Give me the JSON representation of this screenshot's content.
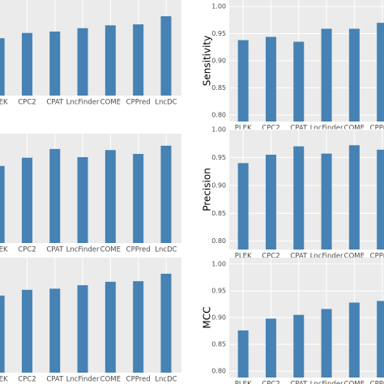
{
  "chart_data": [
    {
      "type": "bar",
      "categories": [
        "PLEK",
        "CPC2",
        "CPAT",
        "LncFinder",
        "COME",
        "CPPred",
        "LncDC"
      ],
      "values": [
        0.92,
        0.931,
        0.934,
        0.941,
        0.947,
        0.949,
        0.966
      ],
      "color": "#4682b4",
      "ylim": [
        0.8,
        1.0
      ],
      "grid": true
    },
    {
      "type": "bar",
      "ylabel": "Sensitivity",
      "categories": [
        "PLEK",
        "CPC2",
        "CPAT",
        "LncFinder",
        "COME",
        "CPPred"
      ],
      "values": [
        0.938,
        0.944,
        0.935,
        0.959,
        0.959,
        0.97
      ],
      "color": "#4682b4",
      "ylim": [
        0.788,
        1.012
      ],
      "yticks": [
        {
          "value": 0.8,
          "label": "0.80"
        },
        0.85,
        {
          "value": 0.9,
          "label": "0.90"
        },
        0.95,
        {
          "value": 1.0,
          "label": "1.00"
        }
      ],
      "grid": true
    },
    {
      "type": "bar",
      "categories": [
        "PLEK",
        "CPC2",
        "CPAT",
        "LncFinder",
        "COME",
        "CPPred",
        "LncDC"
      ],
      "values": [
        0.941,
        0.956,
        0.972,
        0.957,
        0.97,
        0.963,
        0.978
      ],
      "color": "#4682b4",
      "ylim": [
        0.8,
        1.0
      ],
      "grid": true
    },
    {
      "type": "bar",
      "ylabel": "Precision",
      "categories": [
        "PLEK",
        "CPC2",
        "CPAT",
        "LncFinder",
        "COME",
        "CPPred"
      ],
      "values": [
        0.94,
        0.955,
        0.97,
        0.957,
        0.972,
        0.964
      ],
      "color": "#4682b4",
      "ylim": [
        0.785,
        1.0
      ],
      "yticks": [
        {
          "value": 0.8,
          "label": "0.80"
        },
        0.85,
        {
          "value": 0.9,
          "label": "0.90"
        },
        0.95,
        {
          "value": 1.0,
          "label": "1.00"
        }
      ],
      "grid": true
    },
    {
      "type": "bar",
      "categories": [
        "PLEK",
        "CPC2",
        "CPAT",
        "LncFinder",
        "COME",
        "CPPred",
        "LncDC"
      ],
      "values": [
        0.934,
        0.944,
        0.946,
        0.952,
        0.958,
        0.959,
        0.972
      ],
      "color": "#4682b4",
      "ylim": [
        0.8,
        1.0
      ],
      "grid": true
    },
    {
      "type": "bar",
      "ylabel": "MCC",
      "categories": [
        "PLEK",
        "CPC2",
        "CPAT",
        "LncFinder",
        "COME",
        "CPPred"
      ],
      "values": [
        0.876,
        0.898,
        0.905,
        0.916,
        0.928,
        0.931
      ],
      "color": "#4682b4",
      "ylim": [
        0.788,
        1.012
      ],
      "yticks": [
        {
          "value": 0.8,
          "label": "0.80"
        },
        0.85,
        {
          "value": 0.9,
          "label": "0.90"
        },
        0.95,
        {
          "value": 1.0,
          "label": "1.00"
        }
      ],
      "grid": true
    }
  ]
}
